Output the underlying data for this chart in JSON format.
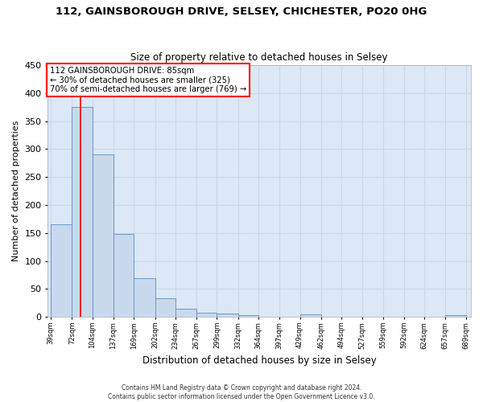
{
  "title1": "112, GAINSBOROUGH DRIVE, SELSEY, CHICHESTER, PO20 0HG",
  "title2": "Size of property relative to detached houses in Selsey",
  "xlabel": "Distribution of detached houses by size in Selsey",
  "ylabel": "Number of detached properties",
  "footer1": "Contains HM Land Registry data © Crown copyright and database right 2024.",
  "footer2": "Contains public sector information licensed under the Open Government Licence v3.0.",
  "bin_edges": [
    39,
    72,
    104,
    137,
    169,
    202,
    234,
    267,
    299,
    332,
    364,
    397,
    429,
    462,
    494,
    527,
    559,
    592,
    624,
    657,
    689
  ],
  "bar_heights": [
    165,
    375,
    290,
    148,
    70,
    33,
    14,
    7,
    6,
    3,
    0,
    0,
    5,
    0,
    0,
    0,
    0,
    0,
    0,
    3
  ],
  "bar_color": "#c9d9ed",
  "bar_edge_color": "#6699cc",
  "grid_color": "#c8d8e8",
  "vline_x": 85,
  "vline_color": "red",
  "annotation_line1": "112 GAINSBOROUGH DRIVE: 85sqm",
  "annotation_line2": "← 30% of detached houses are smaller (325)",
  "annotation_line3": "70% of semi-detached houses are larger (769) →",
  "annotation_box_color": "white",
  "annotation_box_edge": "red",
  "ylim": [
    0,
    450
  ],
  "background_color": "#ffffff",
  "plot_bg_color": "#dce8f5"
}
